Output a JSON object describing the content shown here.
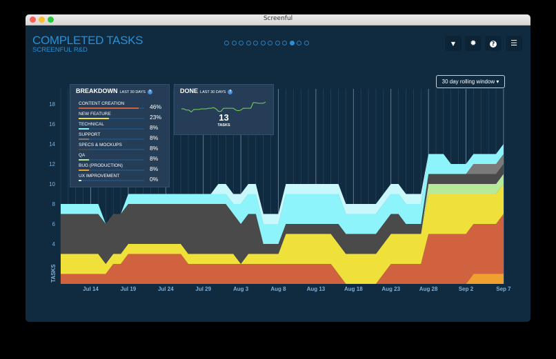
{
  "window": {
    "title": "Screenful"
  },
  "header": {
    "title": "COMPLETED TASKS",
    "subtitle": "SCREENFUL R&D"
  },
  "pager": {
    "count": 12,
    "active_index": 9
  },
  "toolbar": [
    {
      "name": "filter",
      "icon": "filter-icon",
      "glyph": "▼"
    },
    {
      "name": "settings",
      "icon": "gear-icon",
      "glyph": "✹"
    },
    {
      "name": "help",
      "icon": "help-icon",
      "glyph": "?"
    },
    {
      "name": "menu",
      "icon": "menu-icon",
      "glyph": "☰"
    }
  ],
  "dropdown": {
    "value": "30 day rolling window ▾"
  },
  "breakdown": {
    "title": "BREAKDOWN",
    "period": "LAST 30 DAYS",
    "help": "?",
    "items": [
      {
        "label": "CONTENT CREATION",
        "pct": "46%",
        "value": 46,
        "color": "#d0623f"
      },
      {
        "label": "NEW FEATURE",
        "pct": "23%",
        "value": 23,
        "color": "#f0e03a"
      },
      {
        "label": "TECHNICAL",
        "pct": "8%",
        "value": 8,
        "color": "#8ef4fb"
      },
      {
        "label": "SUPPORT",
        "pct": "8%",
        "value": 8,
        "color": "#7a7a7a"
      },
      {
        "label": "SPECS & MOCKUPS",
        "pct": "8%",
        "value": 8,
        "color": "#4a4a4a"
      },
      {
        "label": "QA",
        "pct": "8%",
        "value": 8,
        "color": "#b8e89a"
      },
      {
        "label": "BUG (PRODUCTION)",
        "pct": "8%",
        "value": 8,
        "color": "#f0a030"
      },
      {
        "label": "UX IMPROVEMENT",
        "pct": "0%",
        "value": 0,
        "color": "#c8f8fc"
      }
    ]
  },
  "done": {
    "title": "DONE",
    "period": "LAST 30 DAYS",
    "help": "?",
    "count": "13",
    "unit": "TASKS",
    "trend": [
      9,
      9,
      8.6,
      8.6,
      8,
      8.8,
      8.8,
      8.8,
      9,
      9,
      9,
      9.2,
      9.2,
      9.4,
      9,
      8.2,
      8.2,
      9.2,
      9.2,
      9.2,
      9.2,
      9.2,
      8.6,
      8.4,
      8.6,
      9.2,
      9.2,
      9.2,
      9.2,
      11,
      11,
      10.8,
      10.8,
      10.8,
      11.2
    ]
  },
  "chart_data": {
    "type": "area",
    "stacked": true,
    "ylabel": "TASKS",
    "yticks": [
      4,
      6,
      8,
      10,
      12,
      14,
      16,
      18
    ],
    "ylim": [
      0,
      18
    ],
    "x_start": "Jul 10",
    "x_end": "Sep 7",
    "xtick_labels": [
      {
        "day": 4,
        "label": "Jul 14"
      },
      {
        "day": 9,
        "label": "Jul 19"
      },
      {
        "day": 14,
        "label": "Jul 24"
      },
      {
        "day": 19,
        "label": "Jul 29"
      },
      {
        "day": 24,
        "label": "Aug 3"
      },
      {
        "day": 29,
        "label": "Aug 8"
      },
      {
        "day": 34,
        "label": "Aug 13"
      },
      {
        "day": 39,
        "label": "Aug 18"
      },
      {
        "day": 44,
        "label": "Aug 23"
      },
      {
        "day": 49,
        "label": "Aug 28"
      },
      {
        "day": 54,
        "label": "Sep 2"
      },
      {
        "day": 59,
        "label": "Sep 7"
      }
    ],
    "grid": "vertical",
    "series": [
      {
        "name": "BUG (PRODUCTION)",
        "color": "#f0a030",
        "values": [
          0,
          0,
          0,
          0,
          0,
          0,
          0,
          0,
          0,
          0,
          0,
          0,
          0,
          0,
          0,
          0,
          0,
          0,
          0,
          0,
          0,
          0,
          0,
          0,
          0,
          0,
          0,
          0,
          0,
          0,
          0,
          0,
          0,
          0,
          0,
          0,
          0,
          0,
          0,
          0,
          0,
          0,
          0,
          0,
          0,
          0,
          0,
          0,
          0,
          0,
          0,
          0,
          0,
          0,
          0,
          1,
          1,
          1,
          1,
          1
        ]
      },
      {
        "name": "CONTENT CREATION",
        "color": "#d0623f",
        "values": [
          1,
          1,
          1,
          1,
          1,
          1,
          1,
          2,
          2,
          3,
          3,
          3,
          3,
          3,
          3,
          3,
          3,
          2,
          2,
          2,
          2,
          2,
          2,
          2,
          2,
          2,
          2,
          2,
          2,
          2,
          2,
          2,
          2,
          2,
          2,
          2,
          2,
          1,
          0,
          0,
          0,
          0,
          0,
          1,
          2,
          2,
          2,
          2,
          2,
          5,
          5,
          5,
          5,
          5,
          5,
          5,
          5,
          5,
          5,
          6
        ]
      },
      {
        "name": "NEW FEATURE",
        "color": "#f0e03a",
        "values": [
          2,
          2,
          2,
          2,
          2,
          2,
          1,
          1,
          1,
          1,
          1,
          1,
          1,
          1,
          1,
          1,
          1,
          1,
          1,
          1,
          1,
          1,
          1,
          1,
          0,
          1,
          1,
          1,
          1,
          1,
          3,
          3,
          3,
          3,
          3,
          3,
          3,
          3,
          3,
          3,
          3,
          3,
          3,
          3,
          3,
          3,
          3,
          3,
          3,
          4,
          4,
          4,
          4,
          4,
          4,
          3,
          3,
          3,
          3,
          3
        ]
      },
      {
        "name": "QA",
        "color": "#b8e89a",
        "values": [
          0,
          0,
          0,
          0,
          0,
          0,
          0,
          0,
          0,
          0,
          0,
          0,
          0,
          0,
          0,
          0,
          0,
          0,
          0,
          0,
          0,
          0,
          0,
          0,
          0,
          0,
          0,
          0,
          0,
          0,
          0,
          0,
          0,
          0,
          0,
          0,
          0,
          0,
          0,
          0,
          0,
          0,
          0,
          0,
          0,
          0,
          0,
          0,
          0,
          1,
          1,
          1,
          1,
          1,
          1,
          1,
          1,
          1,
          1,
          1
        ]
      },
      {
        "name": "SPECS & MOCKUPS",
        "color": "#4a4a4a",
        "values": [
          4,
          4,
          4,
          4,
          4,
          4,
          4,
          4,
          4,
          4,
          4,
          4,
          4,
          4,
          4,
          4,
          4,
          5,
          5,
          5,
          5,
          5,
          5,
          4,
          4,
          4,
          4,
          1,
          1,
          1,
          1,
          1,
          1,
          1,
          1,
          1,
          1,
          2,
          2,
          2,
          2,
          2,
          2,
          2,
          2,
          2,
          1,
          1,
          1,
          1,
          1,
          1,
          1,
          1,
          1,
          1,
          1,
          1,
          1,
          1
        ]
      },
      {
        "name": "SUPPORT",
        "color": "#7a7a7a",
        "values": [
          0,
          0,
          0,
          0,
          0,
          0,
          0,
          0,
          0,
          0,
          0,
          0,
          0,
          0,
          0,
          0,
          0,
          0,
          0,
          0,
          0,
          0,
          0,
          0,
          0,
          0,
          0,
          0,
          0,
          0,
          0,
          0,
          0,
          0,
          0,
          0,
          0,
          0,
          0,
          0,
          0,
          0,
          0,
          0,
          0,
          0,
          0,
          0,
          0,
          0,
          0,
          0,
          0,
          0,
          0,
          1,
          1,
          1,
          1,
          1
        ]
      },
      {
        "name": "TECHNICAL",
        "color": "#8ef4fb",
        "values": [
          1,
          1,
          1,
          1,
          1,
          1,
          0,
          0,
          0,
          1,
          1,
          1,
          1,
          1,
          1,
          1,
          1,
          1,
          1,
          1,
          1,
          1,
          1,
          1,
          2,
          2,
          2,
          2,
          2,
          2,
          3,
          3,
          3,
          3,
          3,
          3,
          3,
          3,
          2,
          2,
          2,
          2,
          2,
          2,
          2,
          2,
          2,
          2,
          2,
          2,
          2,
          2,
          1,
          1,
          1,
          1,
          1,
          1,
          1,
          1
        ]
      },
      {
        "name": "UX IMPROVEMENT",
        "color": "#c8f8fc",
        "values": [
          0,
          0,
          0,
          0,
          0,
          0,
          0,
          0,
          0,
          0,
          0,
          0,
          0,
          0,
          0,
          0,
          0,
          0,
          0,
          0,
          0,
          1,
          1,
          1,
          1,
          1,
          1,
          1,
          1,
          1,
          1,
          1,
          1,
          1,
          1,
          1,
          1,
          1,
          1,
          1,
          1,
          1,
          1,
          1,
          1,
          1,
          1,
          1,
          1,
          0,
          0,
          0,
          0,
          0,
          0,
          0,
          0,
          0,
          0,
          0
        ]
      }
    ]
  }
}
